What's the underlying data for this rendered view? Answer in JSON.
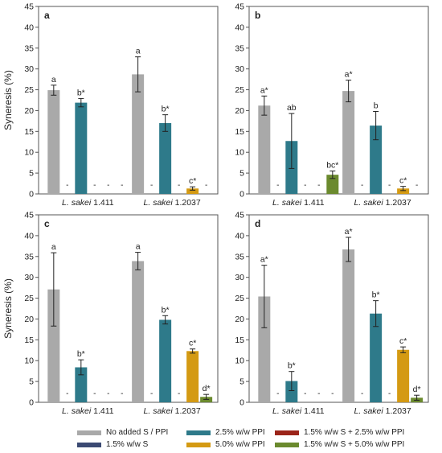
{
  "figure": {
    "y_axis_label": "Syneresis (%)",
    "group_prefix": "L. sakei",
    "no_data_mark": "-"
  },
  "legend": [
    {
      "label": "No added S / PPI",
      "color": "#a9a9a9"
    },
    {
      "label": "2.5% w/w PPI",
      "color": "#2e7a8a"
    },
    {
      "label": "1.5% w/w S + 2.5% w/w PPI",
      "color": "#9b2419"
    },
    {
      "label": "1.5% w/w S",
      "color": "#3b4a73"
    },
    {
      "label": "5.0% w/w PPI",
      "color": "#d49a13"
    },
    {
      "label": "1.5% w/w S + 5.0% w/w PPI",
      "color": "#6b8a2e"
    }
  ],
  "chart_data": [
    {
      "panel": "a",
      "type": "bar",
      "ylim": [
        0,
        45
      ],
      "yticks": [
        0,
        5,
        10,
        15,
        20,
        25,
        30,
        35,
        40,
        45
      ],
      "categories": [
        "L. sakei 1.411",
        "L. sakei 1.2037"
      ],
      "category_strains": [
        "1.411",
        "1.2037"
      ],
      "series": [
        {
          "name": "No added S / PPI",
          "values": [
            24.9,
            28.7
          ],
          "errors": [
            1.2,
            4.2
          ],
          "labels": [
            "a",
            "a"
          ]
        },
        {
          "name": "1.5% w/w S",
          "values": [
            0,
            0
          ],
          "errors": [
            0,
            0
          ],
          "labels": [
            "",
            ""
          ]
        },
        {
          "name": "2.5% w/w PPI",
          "values": [
            21.9,
            17.0
          ],
          "errors": [
            1.0,
            2.0
          ],
          "labels": [
            "b*",
            "b*"
          ]
        },
        {
          "name": "1.5% w/w S + 2.5% w/w PPI",
          "values": [
            0,
            0
          ],
          "errors": [
            0,
            0
          ],
          "labels": [
            "",
            ""
          ]
        },
        {
          "name": "5.0% w/w PPI",
          "values": [
            0,
            1.3
          ],
          "errors": [
            0,
            0.4
          ],
          "labels": [
            "",
            "c*"
          ]
        },
        {
          "name": "1.5% w/w S + 5.0% w/w PPI",
          "values": [
            0,
            0
          ],
          "errors": [
            0,
            0
          ],
          "labels": [
            "",
            ""
          ]
        }
      ]
    },
    {
      "panel": "b",
      "type": "bar",
      "ylim": [
        0,
        45
      ],
      "yticks": [
        0,
        5,
        10,
        15,
        20,
        25,
        30,
        35,
        40,
        45
      ],
      "categories": [
        "L. sakei 1.411",
        "L. sakei 1.2037"
      ],
      "category_strains": [
        "1.411",
        "1.2037"
      ],
      "series": [
        {
          "name": "No added S / PPI",
          "values": [
            21.2,
            24.7
          ],
          "errors": [
            2.3,
            2.6
          ],
          "labels": [
            "a*",
            "a*"
          ]
        },
        {
          "name": "1.5% w/w S",
          "values": [
            0,
            0
          ],
          "errors": [
            0,
            0
          ],
          "labels": [
            "",
            ""
          ]
        },
        {
          "name": "2.5% w/w PPI",
          "values": [
            12.7,
            16.4
          ],
          "errors": [
            6.6,
            3.4
          ],
          "labels": [
            "ab",
            "b"
          ]
        },
        {
          "name": "1.5% w/w S + 2.5% w/w PPI",
          "values": [
            0,
            0
          ],
          "errors": [
            0,
            0
          ],
          "labels": [
            "",
            ""
          ]
        },
        {
          "name": "5.0% w/w PPI",
          "values": [
            0,
            1.3
          ],
          "errors": [
            0,
            0.5
          ],
          "labels": [
            "",
            "c*"
          ]
        },
        {
          "name": "1.5% w/w S + 5.0% w/w PPI",
          "values": [
            4.6,
            0
          ],
          "errors": [
            0.9,
            0
          ],
          "labels": [
            "bc*",
            ""
          ]
        }
      ]
    },
    {
      "panel": "c",
      "type": "bar",
      "ylim": [
        0,
        45
      ],
      "yticks": [
        0,
        5,
        10,
        15,
        20,
        25,
        30,
        35,
        40,
        45
      ],
      "categories": [
        "L. sakei 1.411",
        "L. sakei 1.2037"
      ],
      "category_strains": [
        "1.411",
        "1.2037"
      ],
      "series": [
        {
          "name": "No added S / PPI",
          "values": [
            27.1,
            33.9
          ],
          "errors": [
            8.8,
            2.1
          ],
          "labels": [
            "a",
            "a"
          ]
        },
        {
          "name": "1.5% w/w S",
          "values": [
            0,
            0
          ],
          "errors": [
            0,
            0
          ],
          "labels": [
            "",
            ""
          ]
        },
        {
          "name": "2.5% w/w PPI",
          "values": [
            8.4,
            19.8
          ],
          "errors": [
            1.8,
            1.0
          ],
          "labels": [
            "b*",
            "b*"
          ]
        },
        {
          "name": "1.5% w/w S + 2.5% w/w PPI",
          "values": [
            0,
            0
          ],
          "errors": [
            0,
            0
          ],
          "labels": [
            "",
            ""
          ]
        },
        {
          "name": "5.0% w/w PPI",
          "values": [
            0,
            12.3
          ],
          "errors": [
            0,
            0.5
          ],
          "labels": [
            "",
            "c*"
          ]
        },
        {
          "name": "1.5% w/w S + 5.0% w/w PPI",
          "values": [
            0,
            1.3
          ],
          "errors": [
            0,
            0.6
          ],
          "labels": [
            "",
            "d*"
          ]
        }
      ]
    },
    {
      "panel": "d",
      "type": "bar",
      "ylim": [
        0,
        45
      ],
      "yticks": [
        0,
        5,
        10,
        15,
        20,
        25,
        30,
        35,
        40,
        45
      ],
      "categories": [
        "L. sakei 1.411",
        "L. sakei 1.2037"
      ],
      "category_strains": [
        "1.411",
        "1.2037"
      ],
      "series": [
        {
          "name": "No added S / PPI",
          "values": [
            25.4,
            36.7
          ],
          "errors": [
            7.5,
            2.9
          ],
          "labels": [
            "a*",
            "a*"
          ]
        },
        {
          "name": "1.5% w/w S",
          "values": [
            0,
            0
          ],
          "errors": [
            0,
            0
          ],
          "labels": [
            "",
            ""
          ]
        },
        {
          "name": "2.5% w/w PPI",
          "values": [
            5.1,
            21.3
          ],
          "errors": [
            2.3,
            3.1
          ],
          "labels": [
            "b*",
            "b*"
          ]
        },
        {
          "name": "1.5% w/w S + 2.5% w/w PPI",
          "values": [
            0,
            0
          ],
          "errors": [
            0,
            0
          ],
          "labels": [
            "",
            ""
          ]
        },
        {
          "name": "5.0% w/w PPI",
          "values": [
            0,
            12.6
          ],
          "errors": [
            0,
            0.7
          ],
          "labels": [
            "",
            "c*"
          ]
        },
        {
          "name": "1.5% w/w S + 5.0% w/w PPI",
          "values": [
            0,
            1.1
          ],
          "errors": [
            0,
            0.6
          ],
          "labels": [
            "",
            "d*"
          ]
        }
      ]
    }
  ]
}
